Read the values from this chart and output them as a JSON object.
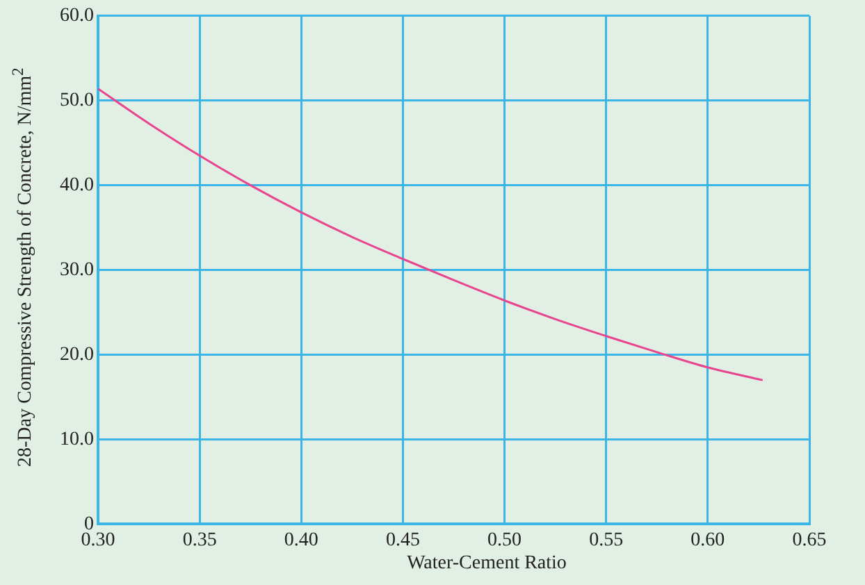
{
  "chart_data": {
    "type": "line",
    "xlabel": "Water-Cement Ratio",
    "ylabel": "28-Day Compressive Strength of Concrete, N/mm$^{2}$",
    "x": [
      0.3,
      0.325,
      0.35,
      0.375,
      0.4,
      0.425,
      0.45,
      0.475,
      0.5,
      0.525,
      0.55,
      0.575,
      0.6,
      0.627
    ],
    "series": [
      {
        "color": "#e8458f",
        "values": [
          51.4,
          47.3,
          43.5,
          40.0,
          36.8,
          33.9,
          31.3,
          28.8,
          26.4,
          24.2,
          22.2,
          20.3,
          18.5,
          17.0
        ]
      }
    ],
    "xlim": [
      0.3,
      0.65
    ],
    "xticks": [
      {
        "value": 0.3,
        "label": "0.30"
      },
      {
        "value": 0.35,
        "label": "0.35"
      },
      {
        "value": 0.4,
        "label": "0.40"
      },
      {
        "value": 0.45,
        "label": "0.45"
      },
      {
        "value": 0.5,
        "label": "0.50"
      },
      {
        "value": 0.55,
        "label": "0.55"
      },
      {
        "value": 0.6,
        "label": "0.60"
      },
      {
        "value": 0.65,
        "label": "0.65"
      }
    ],
    "ylim": [
      0,
      60
    ],
    "yticks": [
      0,
      {
        "value": 10,
        "label": "10.0"
      },
      {
        "value": 20,
        "label": "20.0"
      },
      {
        "value": 30,
        "label": "30.0"
      },
      {
        "value": 40,
        "label": "40.0"
      },
      {
        "value": 50,
        "label": "50.0"
      },
      {
        "value": 60,
        "label": "60.0"
      }
    ],
    "grid": true,
    "marker": "none",
    "line_style": "solid",
    "legend": false
  }
}
